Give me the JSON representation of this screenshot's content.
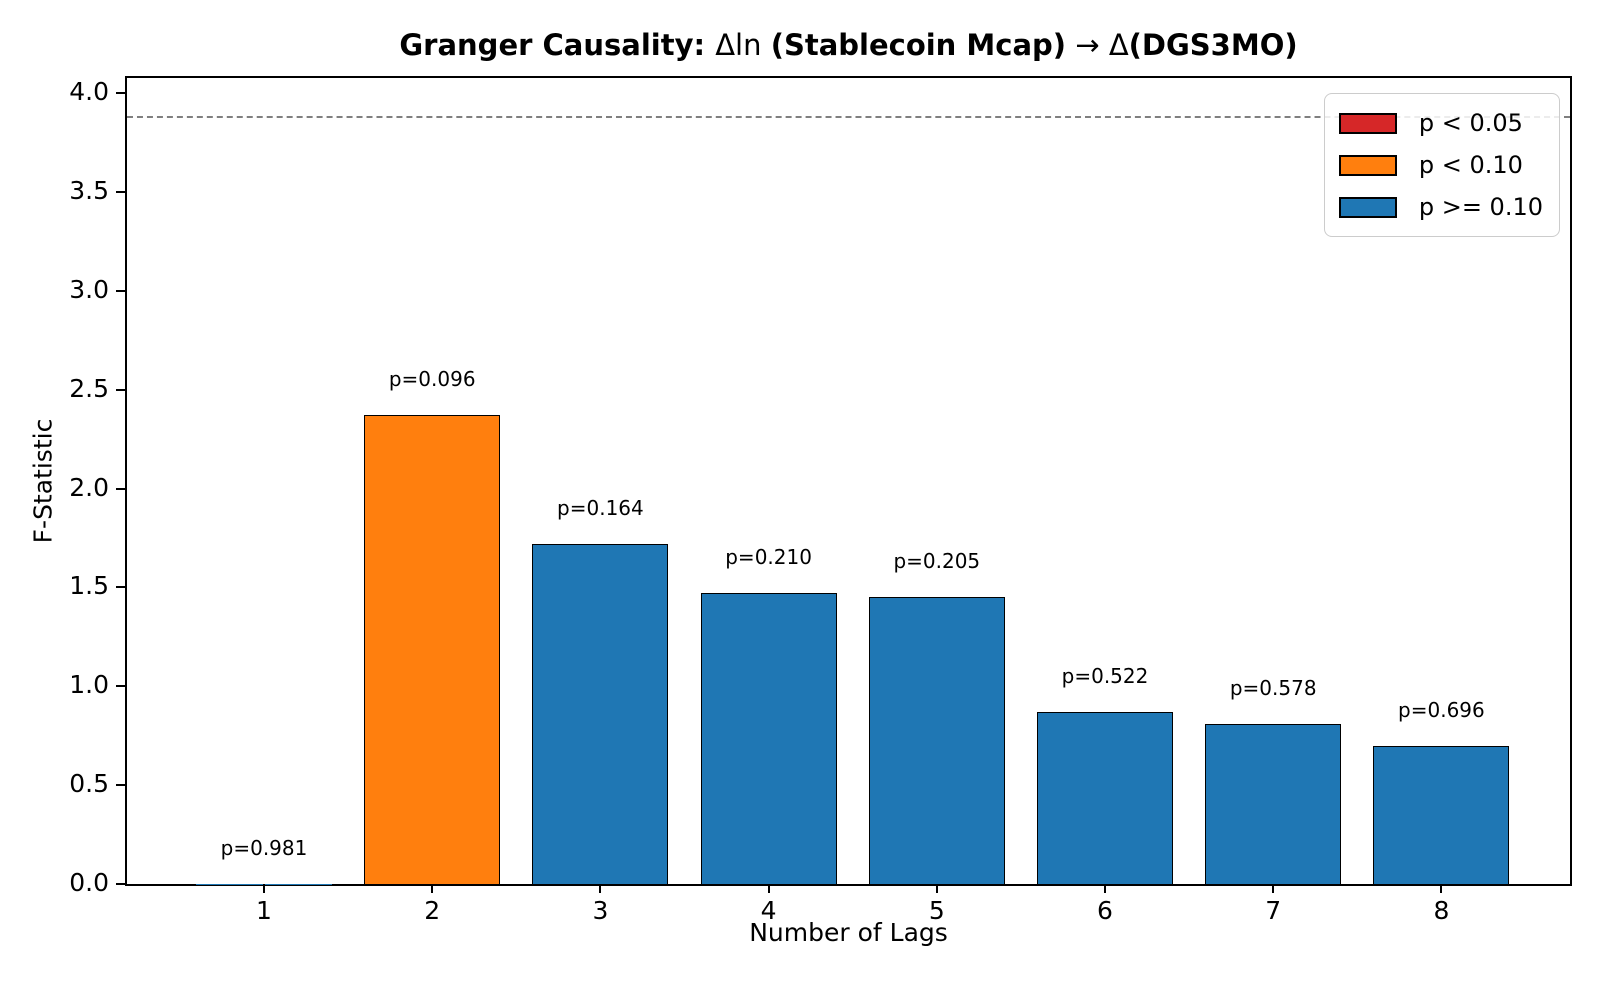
{
  "chart_data": {
    "type": "bar",
    "title": "Granger Causality: Δln (Stablecoin Mcap) → Δ(DGS3MO)",
    "title_parts": [
      {
        "text": "Granger Causality: ",
        "bold": true
      },
      {
        "text": "Δln ",
        "bold": false
      },
      {
        "text": "(Stablecoin Mcap)",
        "bold": true
      },
      {
        "text": " → ",
        "bold": false
      },
      {
        "text": "Δ",
        "bold": false
      },
      {
        "text": "(DGS3MO)",
        "bold": true
      }
    ],
    "xlabel": "Number of Lags",
    "ylabel": "F-Statistic",
    "categories": [
      "1",
      "2",
      "3",
      "4",
      "5",
      "6",
      "7",
      "8"
    ],
    "values": [
      0.001,
      2.37,
      1.72,
      1.47,
      1.45,
      0.87,
      0.81,
      0.7
    ],
    "p_values": [
      0.981,
      0.096,
      0.164,
      0.21,
      0.205,
      0.522,
      0.578,
      0.696
    ],
    "bar_labels": [
      "p=0.981",
      "p=0.096",
      "p=0.164",
      "p=0.210",
      "p=0.205",
      "p=0.522",
      "p=0.578",
      "p=0.696"
    ],
    "bar_colors": [
      "#1f77b4",
      "#ff7f0e",
      "#1f77b4",
      "#1f77b4",
      "#1f77b4",
      "#1f77b4",
      "#1f77b4",
      "#1f77b4"
    ],
    "bar_edge_color": "#000000",
    "yticks": [
      "0.0",
      "0.5",
      "1.0",
      "1.5",
      "2.0",
      "2.5",
      "3.0",
      "3.5",
      "4.0"
    ],
    "ylim": [
      0,
      4.08
    ],
    "grid": false,
    "significance_threshold": {
      "y": 3.88,
      "style": "dashed",
      "color": "#7f7f7f"
    },
    "legend": {
      "position": "upper right",
      "entries": [
        {
          "label": "p < 0.05",
          "color": "#d62728"
        },
        {
          "label": "p < 0.10",
          "color": "#ff7f0e"
        },
        {
          "label": "p >= 0.10",
          "color": "#1f77b4"
        }
      ]
    }
  }
}
